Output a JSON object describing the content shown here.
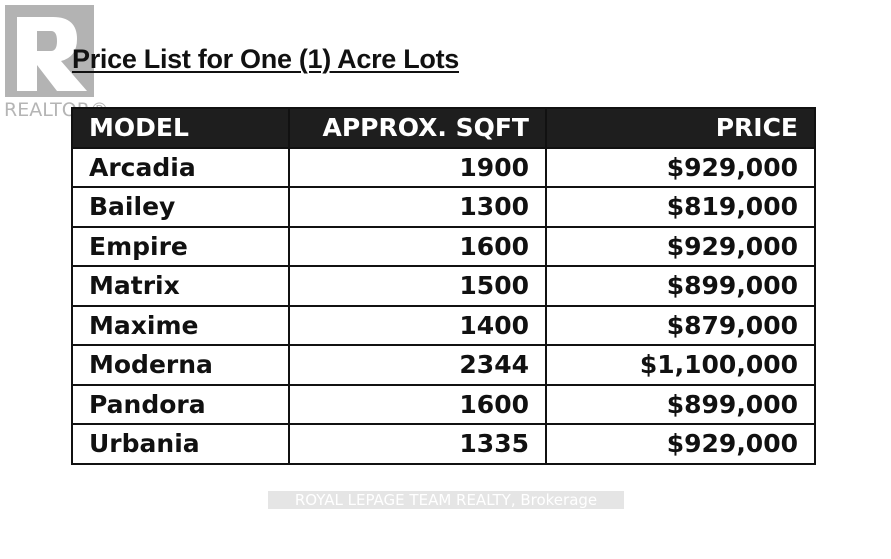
{
  "logo": {
    "text": "REALTOR®",
    "color": "#b3b3b3"
  },
  "title": "Price List for One (1) Acre Lots",
  "table": {
    "headers": [
      "MODEL",
      "APPROX. SQFT",
      "PRICE"
    ],
    "rows": [
      [
        "Arcadia",
        "1900",
        "$929,000"
      ],
      [
        "Bailey",
        "1300",
        "$819,000"
      ],
      [
        "Empire",
        "1600",
        "$929,000"
      ],
      [
        "Matrix",
        "1500",
        "$899,000"
      ],
      [
        "Maxime",
        "1400",
        "$879,000"
      ],
      [
        "Moderna",
        "2344",
        "$1,100,000"
      ],
      [
        "Pandora",
        "1600",
        "$899,000"
      ],
      [
        "Urbania",
        "1335",
        "$929,000"
      ]
    ]
  },
  "watermark": "ROYAL LEPAGE TEAM REALTY, Brokerage"
}
